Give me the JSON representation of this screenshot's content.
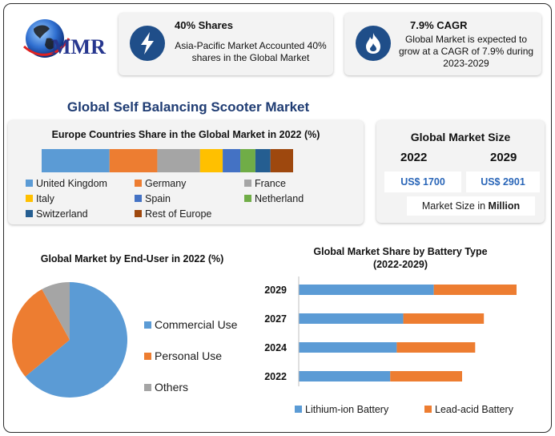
{
  "logo": {
    "text": "MMR"
  },
  "info_cards": [
    {
      "title": "40% Shares",
      "body": "Asia-Pacific Market Accounted 40% shares in the Global Market",
      "icon": "lightning-icon"
    },
    {
      "title": "7.9% CAGR",
      "body": "Global Market is expected to grow at a CAGR of 7.9% during 2023-2029",
      "icon": "flame-icon"
    }
  ],
  "main_title": "Global Self Balancing Scooter Market",
  "market_size": {
    "title": "Global Market Size",
    "years": [
      "2022",
      "2029"
    ],
    "values": [
      "US$ 1700",
      "US$ 2901"
    ],
    "footnote_prefix": "Market Size in ",
    "footnote_unit": "Million"
  },
  "chart_data": [
    {
      "type": "bar",
      "stacked": true,
      "orientation": "horizontal",
      "title": "Europe Countries Share in the Global Market in 2022 (%)",
      "categories": [
        "Europe"
      ],
      "series": [
        {
          "name": "United Kingdom",
          "values": [
            27
          ],
          "color": "#5b9bd5"
        },
        {
          "name": "Germany",
          "values": [
            19
          ],
          "color": "#ed7d31"
        },
        {
          "name": "France",
          "values": [
            17
          ],
          "color": "#a5a5a5"
        },
        {
          "name": "Italy",
          "values": [
            9
          ],
          "color": "#ffc000"
        },
        {
          "name": "Spain",
          "values": [
            7
          ],
          "color": "#4472c4"
        },
        {
          "name": "Netherland",
          "values": [
            6
          ],
          "color": "#70ad47"
        },
        {
          "name": "Switzerland",
          "values": [
            6
          ],
          "color": "#255e91"
        },
        {
          "name": "Rest of Europe",
          "values": [
            9
          ],
          "color": "#9e480e"
        }
      ],
      "legend": "bottom"
    },
    {
      "type": "pie",
      "title": "Global Market by End-User in 2022 (%)",
      "categories": [
        "Commercial Use",
        "Personal Use",
        "Others"
      ],
      "values": [
        64,
        28,
        8
      ],
      "colors": [
        "#5b9bd5",
        "#ed7d31",
        "#a5a5a5"
      ],
      "legend": "right"
    },
    {
      "type": "bar",
      "stacked": true,
      "orientation": "horizontal",
      "title": "Global Market Share by Battery Type",
      "subtitle": "(2022-2029)",
      "categories": [
        "2029",
        "2027",
        "2024",
        "2022"
      ],
      "series": [
        {
          "name": "Lithium-ion Battery",
          "values": [
            62,
            48,
            45,
            42
          ],
          "color": "#5b9bd5"
        },
        {
          "name": "Lead-acid Battery",
          "values": [
            38,
            37,
            36,
            33
          ],
          "color": "#ed7d31"
        }
      ],
      "legend": "bottom"
    }
  ]
}
